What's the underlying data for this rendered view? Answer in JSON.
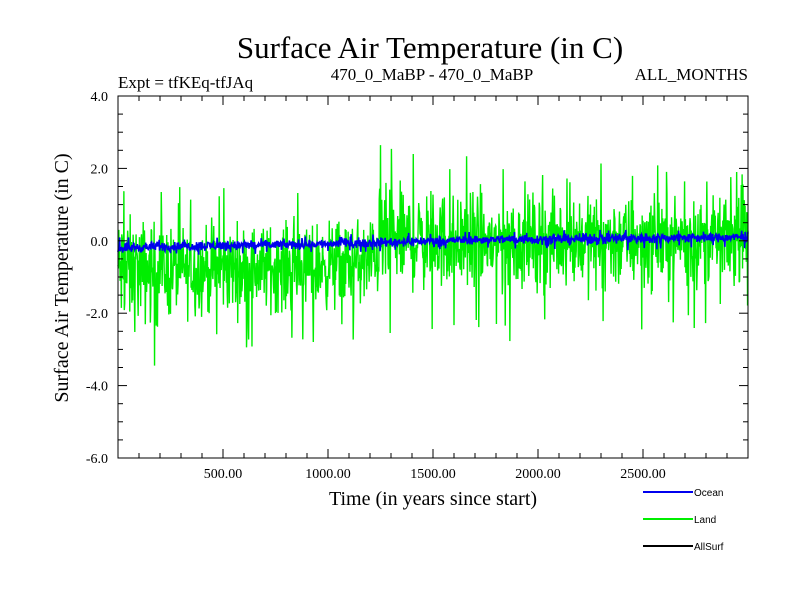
{
  "chart_data": {
    "type": "line",
    "title": "Surface Air Temperature (in C)",
    "subtitle_left": "Expt = tfKEq-tfJAq",
    "subtitle_center": "470_0_MaBP - 470_0_MaBP",
    "subtitle_right": "ALL_MONTHS",
    "xlabel": "Time (in years since start)",
    "ylabel": "Surface Air Temperature (in C)",
    "xlim": [
      0,
      3000
    ],
    "ylim": [
      -6.0,
      4.0
    ],
    "x_ticks": [
      500,
      1000,
      1500,
      2000,
      2500
    ],
    "x_tick_labels": [
      "500.00",
      "1000.00",
      "1500.00",
      "2000.00",
      "2500.00"
    ],
    "y_ticks": [
      4.0,
      2.0,
      0.0,
      -2.0,
      -4.0,
      -6.0
    ],
    "y_tick_labels": [
      "4.0",
      "2.0",
      "0.0",
      "-2.0",
      "-4.0",
      "-6.0"
    ],
    "grid": false,
    "legend_position": "bottom-right",
    "series": [
      {
        "name": "Land",
        "color": "#00ee00",
        "x": [
          0,
          300,
          600,
          900,
          1200,
          1250,
          1500,
          1800,
          2100,
          2400,
          2700,
          3000
        ],
        "mean": [
          -0.8,
          -0.8,
          -0.75,
          -0.7,
          -0.65,
          0.0,
          0.0,
          0.0,
          0.05,
          0.1,
          0.1,
          0.1
        ],
        "max": [
          2.05,
          1.5,
          1.5,
          1.5,
          1.8,
          2.8,
          2.7,
          2.3,
          2.3,
          2.2,
          2.1,
          1.9
        ],
        "min": [
          -4.1,
          -3.2,
          -3.1,
          -3.0,
          -2.9,
          -2.6,
          -2.5,
          -2.9,
          -2.5,
          -2.8,
          -2.5,
          -2.1
        ]
      },
      {
        "name": "Ocean",
        "color": "#0000ee",
        "x": [
          0,
          300,
          600,
          900,
          1200,
          1500,
          1800,
          2100,
          2400,
          2700,
          3000
        ],
        "mean": [
          -0.2,
          -0.15,
          -0.12,
          -0.1,
          -0.05,
          0.0,
          0.05,
          0.05,
          0.08,
          0.1,
          0.1
        ],
        "max": [
          0.1,
          0.1,
          0.15,
          0.15,
          0.2,
          0.25,
          0.25,
          0.3,
          0.35,
          0.3,
          0.3
        ],
        "min": [
          -0.45,
          -0.4,
          -0.4,
          -0.35,
          -0.3,
          -0.25,
          -0.2,
          -0.25,
          -0.3,
          -0.2,
          -0.2
        ]
      },
      {
        "name": "AllSurf",
        "color": "#000000",
        "x": [],
        "mean": []
      }
    ],
    "legend": [
      {
        "label": "Ocean",
        "color": "#0000ee"
      },
      {
        "label": "Land",
        "color": "#00ee00"
      },
      {
        "label": "AllSurf",
        "color": "#000000"
      }
    ]
  }
}
